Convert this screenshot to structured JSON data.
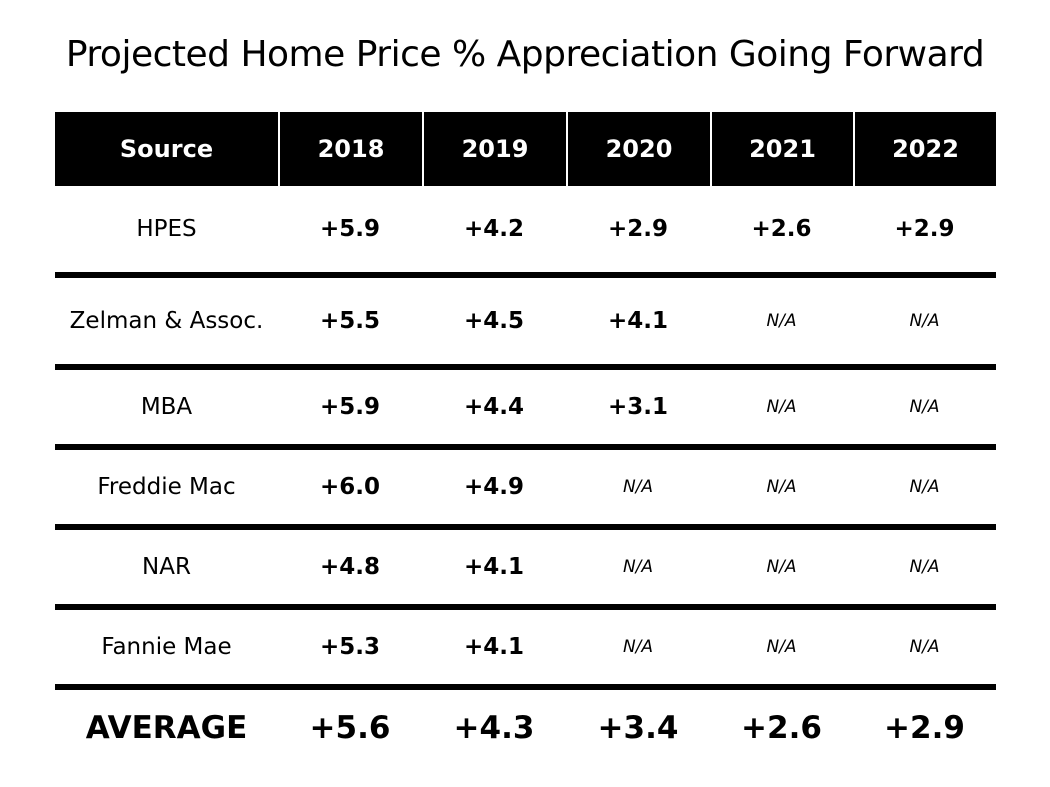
{
  "chart_data": {
    "type": "table",
    "title": "Projected Home Price % Appreciation Going Forward",
    "columns": [
      "Source",
      "2018",
      "2019",
      "2020",
      "2021",
      "2022"
    ],
    "rows": [
      {
        "source": "HPES",
        "values": [
          "+5.9",
          "+4.2",
          "+2.9",
          "+2.6",
          "+2.9"
        ]
      },
      {
        "source": "Zelman & Assoc.",
        "values": [
          "+5.5",
          "+4.5",
          "+4.1",
          "N/A",
          "N/A"
        ]
      },
      {
        "source": "MBA",
        "values": [
          "+5.9",
          "+4.4",
          "+3.1",
          "N/A",
          "N/A"
        ]
      },
      {
        "source": "Freddie Mac",
        "values": [
          "+6.0",
          "+4.9",
          "N/A",
          "N/A",
          "N/A"
        ]
      },
      {
        "source": "NAR",
        "values": [
          "+4.8",
          "+4.1",
          "N/A",
          "N/A",
          "N/A"
        ]
      },
      {
        "source": "Fannie Mae",
        "values": [
          "+5.3",
          "+4.1",
          "N/A",
          "N/A",
          "N/A"
        ]
      }
    ],
    "average": {
      "label": "AVERAGE",
      "values": [
        "+5.6",
        "+4.3",
        "+3.4",
        "+2.6",
        "+2.9"
      ]
    }
  },
  "colors": {
    "header_bg": "#000000",
    "header_text": "#ffffff",
    "divider": "#000000",
    "text": "#000000"
  }
}
